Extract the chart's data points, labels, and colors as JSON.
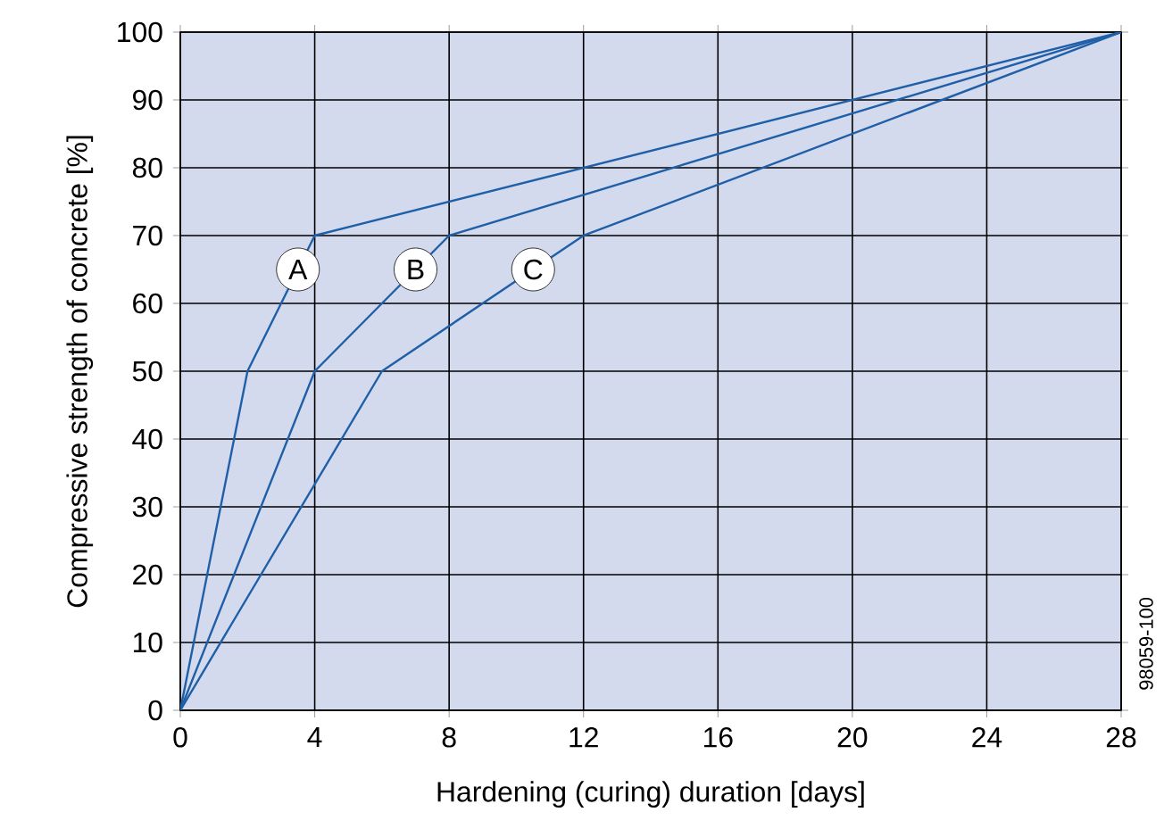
{
  "chart_data": {
    "type": "line",
    "xlabel": "Hardening (curing) duration [days]",
    "ylabel": "Compressive strength of concrete [%]",
    "xlim": [
      0,
      28
    ],
    "ylim": [
      0,
      100
    ],
    "xticks": [
      0,
      4,
      8,
      12,
      16,
      20,
      24,
      28
    ],
    "yticks": [
      0,
      10,
      20,
      30,
      40,
      50,
      60,
      70,
      80,
      90,
      100
    ],
    "grid": true,
    "legend": false,
    "marker": "none",
    "line_style": "solid",
    "series": [
      {
        "name": "A",
        "color": "#1f5fa8",
        "x": [
          0,
          2,
          4,
          28
        ],
        "values": [
          0,
          50,
          70,
          100
        ]
      },
      {
        "name": "B",
        "color": "#1f5fa8",
        "x": [
          0,
          4,
          8,
          28
        ],
        "values": [
          0,
          50,
          70,
          100
        ]
      },
      {
        "name": "C",
        "color": "#1f5fa8",
        "x": [
          0,
          6,
          12,
          28
        ],
        "values": [
          0,
          50,
          70,
          100
        ]
      }
    ],
    "annotations": [
      "98059-100"
    ]
  }
}
